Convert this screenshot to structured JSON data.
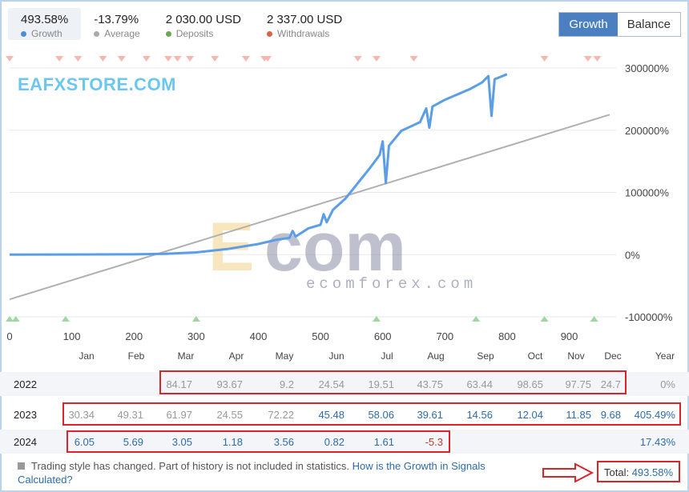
{
  "stats": [
    {
      "value": "493.58%",
      "label": "Growth",
      "color": "#4a90d9"
    },
    {
      "value": "-13.79%",
      "label": "Average",
      "color": "#aaaaaa"
    },
    {
      "value": "2 030.00 USD",
      "label": "Deposits",
      "color": "#6aa84f"
    },
    {
      "value": "2 337.00 USD",
      "label": "Withdrawals",
      "color": "#e06040"
    }
  ],
  "toggle": {
    "growth": "Growth",
    "balance": "Balance"
  },
  "watermark": {
    "top": "EAFXSTORE.COM",
    "logo": "Ecom",
    "sub": "ecomforex.com"
  },
  "colors": {
    "line": "#5b9ee6",
    "trend": "#b0b0b0",
    "deposit": "#9fd7a0",
    "withdrawal": "#f4b8b0",
    "positive": "#2d6ca8",
    "negative": "#c0392b",
    "muted": "#999999",
    "highlight": "#d9242b"
  },
  "chart_data": {
    "type": "line",
    "x_ticks": [
      0,
      100,
      200,
      300,
      400,
      500,
      600,
      700,
      800,
      900
    ],
    "y_ticks": [
      -1000000,
      0,
      1000000,
      2000000,
      3000000
    ],
    "y_tick_labels": [
      "-100000%",
      "0%",
      "100000%",
      "200000%",
      "300000%"
    ],
    "xlim": [
      0,
      965
    ],
    "ylim": [
      -1000000,
      3000000
    ],
    "series": [
      {
        "values": [
          [
            0,
            0
          ],
          [
            100,
            2000
          ],
          [
            200,
            5000
          ],
          [
            250,
            12000
          ],
          [
            300,
            35000
          ],
          [
            350,
            90000
          ],
          [
            400,
            170000
          ],
          [
            430,
            240000
          ],
          [
            450,
            270000
          ],
          [
            455,
            380000
          ],
          [
            460,
            290000
          ],
          [
            480,
            420000
          ],
          [
            500,
            480000
          ],
          [
            505,
            650000
          ],
          [
            510,
            520000
          ],
          [
            520,
            720000
          ],
          [
            540,
            900000
          ],
          [
            560,
            1150000
          ],
          [
            580,
            1400000
          ],
          [
            595,
            1600000
          ],
          [
            600,
            1820000
          ],
          [
            605,
            1150000
          ],
          [
            610,
            1750000
          ],
          [
            630,
            1990000
          ],
          [
            660,
            2130000
          ],
          [
            670,
            2350000
          ],
          [
            675,
            2040000
          ],
          [
            680,
            2380000
          ],
          [
            700,
            2490000
          ],
          [
            740,
            2660000
          ],
          [
            760,
            2770000
          ],
          [
            770,
            2870000
          ],
          [
            775,
            2230000
          ],
          [
            780,
            2820000
          ],
          [
            790,
            2860000
          ],
          [
            800,
            2900000
          ]
        ]
      }
    ],
    "trend": [
      [
        0,
        -720000
      ],
      [
        965,
        2250000
      ]
    ],
    "deposit_markers": [
      0,
      10,
      90,
      300,
      590,
      750,
      860,
      940
    ],
    "withdrawal_markers": [
      0,
      80,
      110,
      150,
      180,
      220,
      255,
      270,
      290,
      330,
      380,
      410,
      415,
      560,
      590,
      650,
      860,
      930,
      945
    ]
  },
  "months": [
    "Jan",
    "Feb",
    "Mar",
    "Apr",
    "May",
    "Jun",
    "Jul",
    "Aug",
    "Sep",
    "Oct",
    "Nov",
    "Dec",
    "Year"
  ],
  "table": [
    {
      "year": "2022",
      "values": [
        "",
        "",
        "84.17",
        "93.67",
        "9.2",
        "24.54",
        "19.51",
        "43.75",
        "63.44",
        "98.65",
        "97.75",
        "24.7"
      ],
      "total": "0%"
    },
    {
      "year": "2023",
      "values": [
        "30.34",
        "49.31",
        "61.97",
        "24.55",
        "72.22",
        "45.48",
        "58.06",
        "39.61",
        "14.56",
        "12.04",
        "11.85",
        "9.68"
      ],
      "total": "405.49%"
    },
    {
      "year": "2024",
      "values": [
        "6.05",
        "5.69",
        "3.05",
        "1.18",
        "3.56",
        "0.82",
        "1.61",
        "-5.3",
        "",
        "",
        "",
        ""
      ],
      "total": "17.43%"
    }
  ],
  "note": {
    "text": "Trading style has changed. Part of history is not included in statistics.",
    "link": "How is the Growth in Signals Calculated?"
  },
  "total": {
    "label": "Total:",
    "value": "493.58%"
  }
}
